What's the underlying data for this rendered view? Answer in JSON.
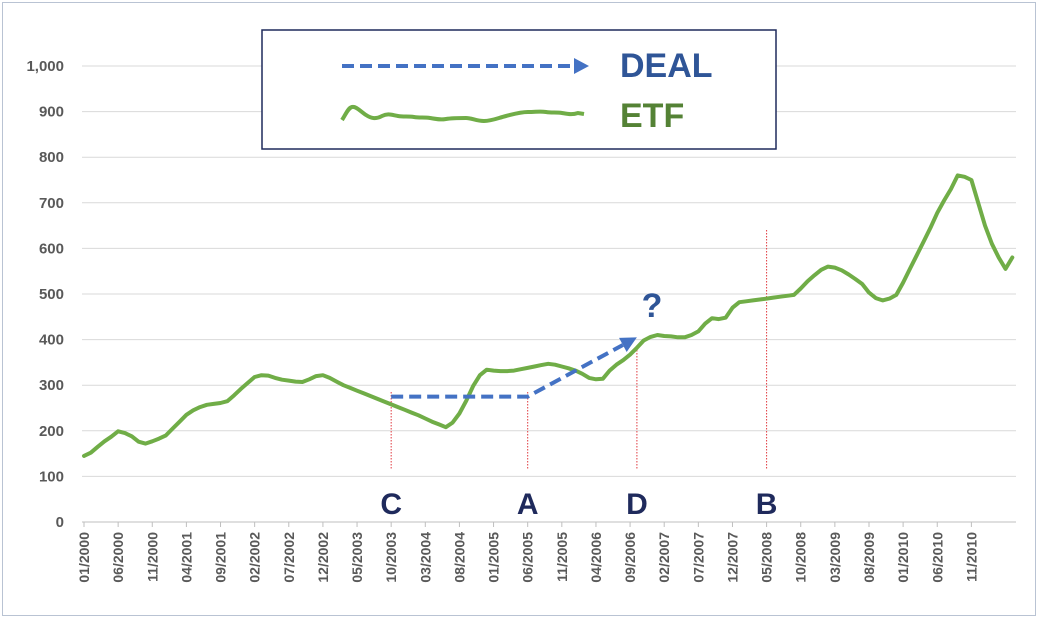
{
  "chart_data": {
    "type": "line",
    "ylim": [
      0,
      1000
    ],
    "yticks": [
      "0",
      "100",
      "200",
      "300",
      "400",
      "500",
      "600",
      "700",
      "800",
      "900",
      "1,000"
    ],
    "x_tick_labels": [
      "01/2000",
      "06/2000",
      "11/2000",
      "04/2001",
      "09/2001",
      "02/2002",
      "07/2002",
      "12/2002",
      "05/2003",
      "10/2003",
      "03/2004",
      "08/2004",
      "01/2005",
      "06/2005",
      "11/2005",
      "04/2006",
      "09/2006",
      "02/2007",
      "07/2007",
      "12/2007",
      "05/2008",
      "10/2008",
      "03/2009",
      "08/2009",
      "01/2010",
      "06/2010",
      "11/2010"
    ],
    "grid": true,
    "series": [
      {
        "name": "ETF",
        "color": "#70ad47",
        "points": [
          [
            "01/2000",
            145
          ],
          [
            "02/2000",
            152
          ],
          [
            "03/2000",
            165
          ],
          [
            "04/2000",
            177
          ],
          [
            "05/2000",
            187
          ],
          [
            "06/2000",
            199
          ],
          [
            "07/2000",
            195
          ],
          [
            "08/2000",
            188
          ],
          [
            "09/2000",
            176
          ],
          [
            "10/2000",
            172
          ],
          [
            "11/2000",
            177
          ],
          [
            "12/2000",
            183
          ],
          [
            "01/2001",
            190
          ],
          [
            "02/2001",
            205
          ],
          [
            "03/2001",
            220
          ],
          [
            "04/2001",
            235
          ],
          [
            "05/2001",
            245
          ],
          [
            "06/2001",
            252
          ],
          [
            "07/2001",
            257
          ],
          [
            "08/2001",
            259
          ],
          [
            "09/2001",
            261
          ],
          [
            "10/2001",
            265
          ],
          [
            "11/2001",
            278
          ],
          [
            "12/2001",
            292
          ],
          [
            "01/2002",
            305
          ],
          [
            "02/2002",
            318
          ],
          [
            "03/2002",
            322
          ],
          [
            "04/2002",
            321
          ],
          [
            "05/2002",
            316
          ],
          [
            "06/2002",
            312
          ],
          [
            "07/2002",
            310
          ],
          [
            "08/2002",
            308
          ],
          [
            "09/2002",
            307
          ],
          [
            "10/2002",
            313
          ],
          [
            "11/2002",
            320
          ],
          [
            "12/2002",
            322
          ],
          [
            "01/2003",
            316
          ],
          [
            "02/2003",
            308
          ],
          [
            "03/2003",
            300
          ],
          [
            "04/2003",
            294
          ],
          [
            "05/2003",
            288
          ],
          [
            "06/2003",
            282
          ],
          [
            "07/2003",
            276
          ],
          [
            "08/2003",
            270
          ],
          [
            "09/2003",
            264
          ],
          [
            "10/2003",
            258
          ],
          [
            "11/2003",
            252
          ],
          [
            "12/2003",
            246
          ],
          [
            "01/2004",
            240
          ],
          [
            "02/2004",
            234
          ],
          [
            "03/2004",
            227
          ],
          [
            "04/2004",
            220
          ],
          [
            "05/2004",
            214
          ],
          [
            "06/2004",
            208
          ],
          [
            "07/2004",
            218
          ],
          [
            "08/2004",
            238
          ],
          [
            "09/2004",
            266
          ],
          [
            "10/2004",
            298
          ],
          [
            "11/2004",
            322
          ],
          [
            "12/2004",
            334
          ],
          [
            "01/2005",
            332
          ],
          [
            "02/2005",
            331
          ],
          [
            "03/2005",
            331
          ],
          [
            "04/2005",
            332
          ],
          [
            "05/2005",
            335
          ],
          [
            "06/2005",
            338
          ],
          [
            "07/2005",
            341
          ],
          [
            "08/2005",
            344
          ],
          [
            "09/2005",
            347
          ],
          [
            "10/2005",
            345
          ],
          [
            "11/2005",
            341
          ],
          [
            "12/2005",
            337
          ],
          [
            "01/2006",
            332
          ],
          [
            "02/2006",
            325
          ],
          [
            "03/2006",
            316
          ],
          [
            "04/2006",
            313
          ],
          [
            "05/2006",
            314
          ],
          [
            "06/2006",
            332
          ],
          [
            "07/2006",
            345
          ],
          [
            "08/2006",
            355
          ],
          [
            "09/2006",
            367
          ],
          [
            "10/2006",
            382
          ],
          [
            "11/2006",
            398
          ],
          [
            "12/2006",
            406
          ],
          [
            "01/2007",
            410
          ],
          [
            "02/2007",
            408
          ],
          [
            "03/2007",
            407
          ],
          [
            "04/2007",
            405
          ],
          [
            "05/2007",
            405
          ],
          [
            "06/2007",
            410
          ],
          [
            "07/2007",
            418
          ],
          [
            "08/2007",
            435
          ],
          [
            "09/2007",
            447
          ],
          [
            "10/2007",
            445
          ],
          [
            "11/2007",
            448
          ],
          [
            "12/2007",
            470
          ],
          [
            "01/2008",
            482
          ],
          [
            "02/2008",
            484
          ],
          [
            "03/2008",
            486
          ],
          [
            "04/2008",
            488
          ],
          [
            "05/2008",
            490
          ],
          [
            "06/2008",
            492
          ],
          [
            "07/2008",
            494
          ],
          [
            "08/2008",
            496
          ],
          [
            "09/2008",
            498
          ],
          [
            "10/2008",
            512
          ],
          [
            "11/2008",
            528
          ],
          [
            "12/2008",
            541
          ],
          [
            "01/2009",
            553
          ],
          [
            "02/2009",
            560
          ],
          [
            "03/2009",
            558
          ],
          [
            "04/2009",
            552
          ],
          [
            "05/2009",
            543
          ],
          [
            "06/2009",
            533
          ],
          [
            "07/2009",
            522
          ],
          [
            "08/2009",
            503
          ],
          [
            "09/2009",
            491
          ],
          [
            "10/2009",
            486
          ],
          [
            "11/2009",
            490
          ],
          [
            "12/2009",
            498
          ],
          [
            "01/2010",
            525
          ],
          [
            "02/2010",
            555
          ],
          [
            "03/2010",
            585
          ],
          [
            "04/2010",
            615
          ],
          [
            "05/2010",
            645
          ],
          [
            "06/2010",
            678
          ],
          [
            "07/2010",
            705
          ],
          [
            "08/2010",
            730
          ],
          [
            "09/2010",
            760
          ],
          [
            "10/2010",
            757
          ],
          [
            "11/2010",
            750
          ],
          [
            "12/2010",
            700
          ],
          [
            "01/2011",
            650
          ],
          [
            "02/2011",
            610
          ],
          [
            "03/2011",
            580
          ],
          [
            "04/2011",
            555
          ],
          [
            "05/2011",
            580
          ]
        ]
      }
    ],
    "annotations": {
      "markers": [
        {
          "label": "C",
          "date": "10/2003"
        },
        {
          "label": "A",
          "date": "06/2005"
        },
        {
          "label": "D",
          "date": "10/2006"
        },
        {
          "label": "B",
          "date": "05/2008"
        }
      ],
      "deal_arrow": {
        "color": "#4472c4",
        "points": [
          [
            "10/2003",
            275
          ],
          [
            "06/2005",
            275
          ],
          [
            "10/2006",
            405
          ]
        ]
      },
      "question_mark": "?"
    },
    "legend": {
      "position": "top-center",
      "entries": [
        {
          "label": "DEAL",
          "style": "dashed-arrow",
          "color": "#4472c4",
          "text_color": "#2f5597"
        },
        {
          "label": "ETF",
          "style": "wavy-line",
          "color": "#70ad47",
          "text_color": "#548235"
        }
      ]
    }
  }
}
